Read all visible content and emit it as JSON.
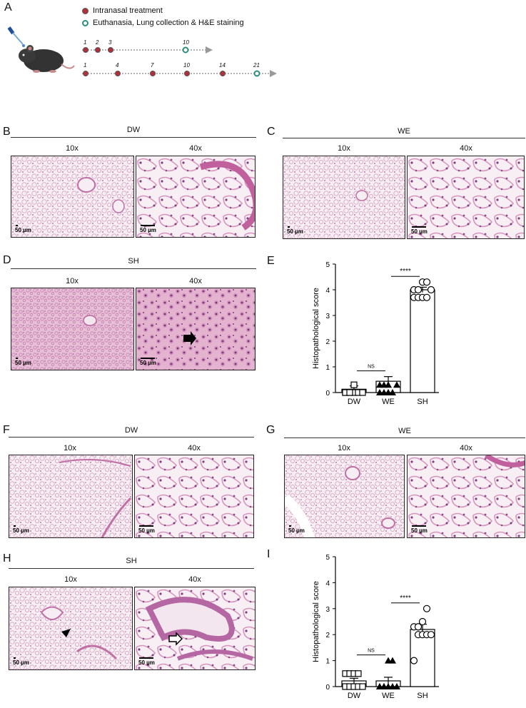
{
  "panel_A": {
    "label": "A",
    "legend": [
      {
        "text": "Intranasal treatment",
        "color": "#b0303a"
      },
      {
        "text": "Euthanasia,  Lung collection & H&E staining",
        "color": "#2e8f80"
      }
    ],
    "timeline1": [
      "1",
      "2",
      "3",
      "10"
    ],
    "timeline2": [
      "1",
      "4",
      "7",
      "10",
      "14",
      "21"
    ]
  },
  "panels": {
    "B": {
      "label": "B",
      "group": "DW",
      "mag_low": "10x",
      "mag_high": "40x",
      "scale": "50 µm"
    },
    "C": {
      "label": "C",
      "group": "WE",
      "mag_low": "10x",
      "mag_high": "40x",
      "scale": "50 µm"
    },
    "D": {
      "label": "D",
      "group": "SH",
      "mag_low": "10x",
      "mag_high": "40x",
      "scale": "50 µm"
    },
    "F": {
      "label": "F",
      "group": "DW",
      "mag_low": "10x",
      "mag_high": "40x",
      "scale": "50 µm"
    },
    "G": {
      "label": "G",
      "group": "WE",
      "mag_low": "10x",
      "mag_high": "40x",
      "scale": "50 µm"
    },
    "H": {
      "label": "H",
      "group": "SH",
      "mag_low": "10x",
      "mag_high": "40x",
      "scale": "50 µm"
    }
  },
  "chart_data": [
    {
      "panel": "E",
      "type": "bar",
      "ylabel": "Histopathological score",
      "categories": [
        "DW",
        "WE",
        "SH"
      ],
      "values": [
        0.13,
        0.44,
        4.0
      ],
      "sem": [
        0.13,
        0.18,
        0.1
      ],
      "points": [
        [
          0,
          0,
          0,
          0,
          0,
          0,
          0,
          0.3
        ],
        [
          0,
          0,
          0,
          0,
          0.3,
          0.3,
          0.3,
          0.3
        ],
        [
          3.7,
          3.7,
          3.7,
          3.7,
          4.0,
          4.0,
          4.0,
          4.3,
          4.3
        ]
      ],
      "markers": [
        "square",
        "triangle",
        "circle"
      ],
      "ylim": [
        0,
        5
      ],
      "yticks": [
        "0",
        "1",
        "2",
        "3",
        "4",
        "5"
      ],
      "annotations": [
        {
          "text": "NS",
          "between": [
            0,
            1
          ]
        },
        {
          "text": "****",
          "between": [
            1,
            2
          ]
        }
      ]
    },
    {
      "panel": "I",
      "type": "bar",
      "ylabel": "Histopathological score",
      "categories": [
        "DW",
        "WE",
        "SH"
      ],
      "values": [
        0.22,
        0.22,
        2.2
      ],
      "sem": [
        0.1,
        0.14,
        0.2
      ],
      "points": [
        [
          0,
          0,
          0,
          0,
          0,
          0.5,
          0.5,
          0.5,
          0.5
        ],
        [
          0,
          0,
          0,
          0,
          0,
          0,
          0,
          1.0,
          1.0
        ],
        [
          1.0,
          2.0,
          2.0,
          2.0,
          2.0,
          2.3,
          2.3,
          2.5,
          3.0
        ]
      ],
      "markers": [
        "square",
        "triangle",
        "circle"
      ],
      "ylim": [
        0,
        5
      ],
      "yticks": [
        "0",
        "1",
        "2",
        "3",
        "4",
        "5"
      ],
      "annotations": [
        {
          "text": "NS",
          "between": [
            0,
            1
          ]
        },
        {
          "text": "****",
          "between": [
            1,
            2
          ]
        }
      ]
    }
  ],
  "chart_labels": {
    "E": "E",
    "I": "I"
  }
}
